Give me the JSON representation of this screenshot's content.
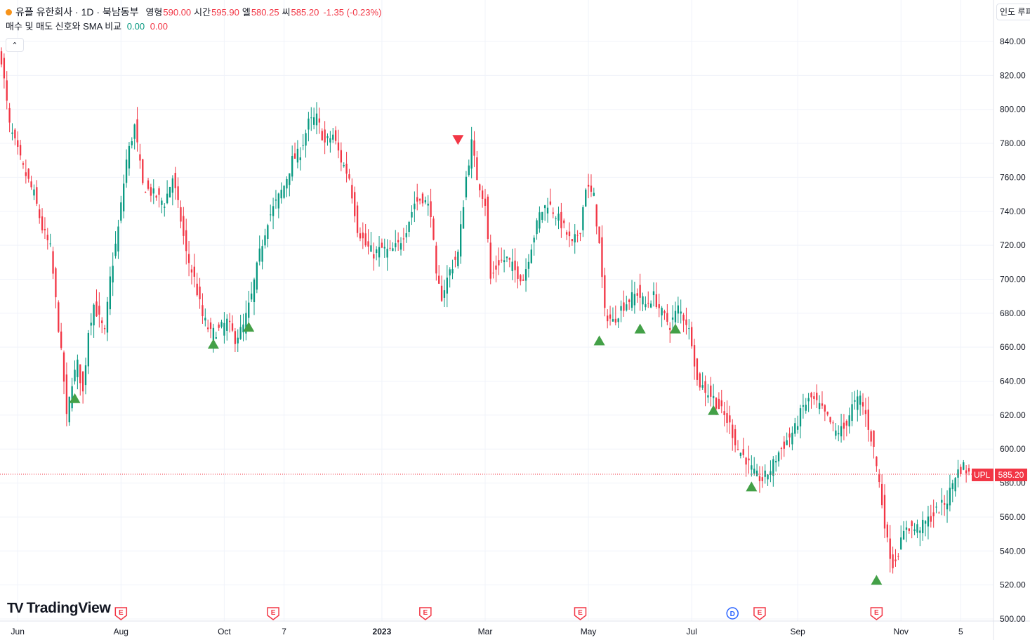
{
  "header": {
    "title": "유플 유한회사 · 1D · 북남동부",
    "ohlc": [
      {
        "label": "영형",
        "value": "590.00"
      },
      {
        "label": "시간",
        "value": "595.90"
      },
      {
        "label": "엘",
        "value": "580.25"
      },
      {
        "label": "씨",
        "value": "585.20"
      }
    ],
    "change": "-1.35 (-0.23%)",
    "indicator_name": "매수 및 매도 신호와 SMA 비교",
    "indicator_values": [
      "0.00",
      "0.00"
    ],
    "collapse_icon": "chevron-up-icon",
    "top_right_label": "인도 루피"
  },
  "price_tag": {
    "symbol": "UPL",
    "value": "585.20"
  },
  "brand": {
    "name": "TradingView",
    "icon": "tradingview-logo-icon"
  },
  "colors": {
    "up": "#089981",
    "down": "#f23645",
    "buy": "#43a047",
    "sell": "#f23645",
    "grid": "#f0f3fa",
    "axis_text": "#131722",
    "event_e": "#f23645",
    "event_d": "#2962ff"
  },
  "chart_data": {
    "type": "candlestick",
    "y_axis": {
      "range": [
        500,
        850
      ],
      "ticks": [
        "500.00",
        "520.00",
        "540.00",
        "560.00",
        "580.00",
        "600.00",
        "620.00",
        "640.00",
        "660.00",
        "680.00",
        "700.00",
        "720.00",
        "740.00",
        "760.00",
        "780.00",
        "800.00",
        "820.00",
        "840.00"
      ],
      "position": "right"
    },
    "x_axis": {
      "labels": [
        "Jun",
        "Aug",
        "Oct",
        "7",
        "2023",
        "Mar",
        "May",
        "Jul",
        "Sep",
        "Nov",
        "5"
      ],
      "label_index": [
        6,
        44,
        82,
        104,
        140,
        178,
        216,
        254,
        293,
        331,
        353
      ]
    },
    "last_price": 585.2,
    "path_points": [
      [
        0,
        830
      ],
      [
        3,
        790
      ],
      [
        8,
        765
      ],
      [
        12,
        750
      ],
      [
        15,
        730
      ],
      [
        18,
        718
      ],
      [
        21,
        672
      ],
      [
        23,
        640
      ],
      [
        24,
        618
      ],
      [
        26,
        640
      ],
      [
        28,
        650
      ],
      [
        30,
        633
      ],
      [
        32,
        670
      ],
      [
        34,
        685
      ],
      [
        38,
        668
      ],
      [
        40,
        700
      ],
      [
        43,
        730
      ],
      [
        46,
        770
      ],
      [
        49,
        790
      ],
      [
        52,
        755
      ],
      [
        56,
        750
      ],
      [
        60,
        745
      ],
      [
        63,
        760
      ],
      [
        66,
        735
      ],
      [
        68,
        715
      ],
      [
        71,
        700
      ],
      [
        74,
        678
      ],
      [
        77,
        668
      ],
      [
        80,
        670
      ],
      [
        83,
        675
      ],
      [
        86,
        665
      ],
      [
        89,
        672
      ],
      [
        92,
        690
      ],
      [
        95,
        715
      ],
      [
        98,
        735
      ],
      [
        101,
        745
      ],
      [
        104,
        755
      ],
      [
        107,
        770
      ],
      [
        110,
        775
      ],
      [
        113,
        792
      ],
      [
        116,
        795
      ],
      [
        119,
        780
      ],
      [
        122,
        785
      ],
      [
        125,
        770
      ],
      [
        128,
        760
      ],
      [
        131,
        730
      ],
      [
        134,
        720
      ],
      [
        137,
        715
      ],
      [
        140,
        718
      ],
      [
        143,
        716
      ],
      [
        146,
        720
      ],
      [
        149,
        730
      ],
      [
        152,
        745
      ],
      [
        155,
        748
      ],
      [
        158,
        740
      ],
      [
        160,
        700
      ],
      [
        162,
        690
      ],
      [
        165,
        705
      ],
      [
        168,
        715
      ],
      [
        171,
        760
      ],
      [
        173,
        780
      ],
      [
        175,
        760
      ],
      [
        178,
        745
      ],
      [
        180,
        700
      ],
      [
        183,
        710
      ],
      [
        186,
        712
      ],
      [
        189,
        705
      ],
      [
        192,
        700
      ],
      [
        195,
        720
      ],
      [
        198,
        738
      ],
      [
        201,
        745
      ],
      [
        204,
        738
      ],
      [
        207,
        730
      ],
      [
        210,
        720
      ],
      [
        213,
        730
      ],
      [
        215,
        755
      ],
      [
        218,
        748
      ],
      [
        220,
        720
      ],
      [
        222,
        680
      ],
      [
        225,
        675
      ],
      [
        228,
        683
      ],
      [
        231,
        688
      ],
      [
        234,
        692
      ],
      [
        237,
        685
      ],
      [
        240,
        690
      ],
      [
        243,
        680
      ],
      [
        246,
        673
      ],
      [
        249,
        683
      ],
      [
        252,
        675
      ],
      [
        254,
        664
      ],
      [
        256,
        640
      ],
      [
        259,
        635
      ],
      [
        262,
        630
      ],
      [
        265,
        622
      ],
      [
        268,
        614
      ],
      [
        271,
        600
      ],
      [
        274,
        594
      ],
      [
        277,
        585
      ],
      [
        280,
        582
      ],
      [
        283,
        588
      ],
      [
        286,
        598
      ],
      [
        289,
        605
      ],
      [
        292,
        612
      ],
      [
        295,
        625
      ],
      [
        298,
        630
      ],
      [
        301,
        625
      ],
      [
        304,
        618
      ],
      [
        307,
        610
      ],
      [
        310,
        612
      ],
      [
        313,
        625
      ],
      [
        316,
        630
      ],
      [
        318,
        620
      ],
      [
        321,
        600
      ],
      [
        323,
        580
      ],
      [
        326,
        545
      ],
      [
        328,
        532
      ],
      [
        330,
        540
      ],
      [
        333,
        555
      ],
      [
        336,
        553
      ],
      [
        339,
        555
      ],
      [
        342,
        560
      ],
      [
        345,
        565
      ],
      [
        348,
        570
      ],
      [
        351,
        585
      ],
      [
        354,
        590
      ],
      [
        356,
        585.2
      ]
    ],
    "signals": [
      {
        "type": "buy",
        "index": 27,
        "price": 630
      },
      {
        "type": "buy",
        "index": 78,
        "price": 662
      },
      {
        "type": "buy",
        "index": 91,
        "price": 672
      },
      {
        "type": "sell",
        "index": 168,
        "price": 782
      },
      {
        "type": "buy",
        "index": 220,
        "price": 664
      },
      {
        "type": "buy",
        "index": 235,
        "price": 671
      },
      {
        "type": "buy",
        "index": 248,
        "price": 671
      },
      {
        "type": "buy",
        "index": 262,
        "price": 623
      },
      {
        "type": "buy",
        "index": 276,
        "price": 578
      },
      {
        "type": "buy",
        "index": 322,
        "price": 523
      }
    ],
    "events": [
      {
        "type": "E",
        "index": 44
      },
      {
        "type": "E",
        "index": 100
      },
      {
        "type": "E",
        "index": 156
      },
      {
        "type": "E",
        "index": 213
      },
      {
        "type": "D",
        "index": 269
      },
      {
        "type": "E",
        "index": 279
      },
      {
        "type": "E",
        "index": 322
      }
    ]
  }
}
